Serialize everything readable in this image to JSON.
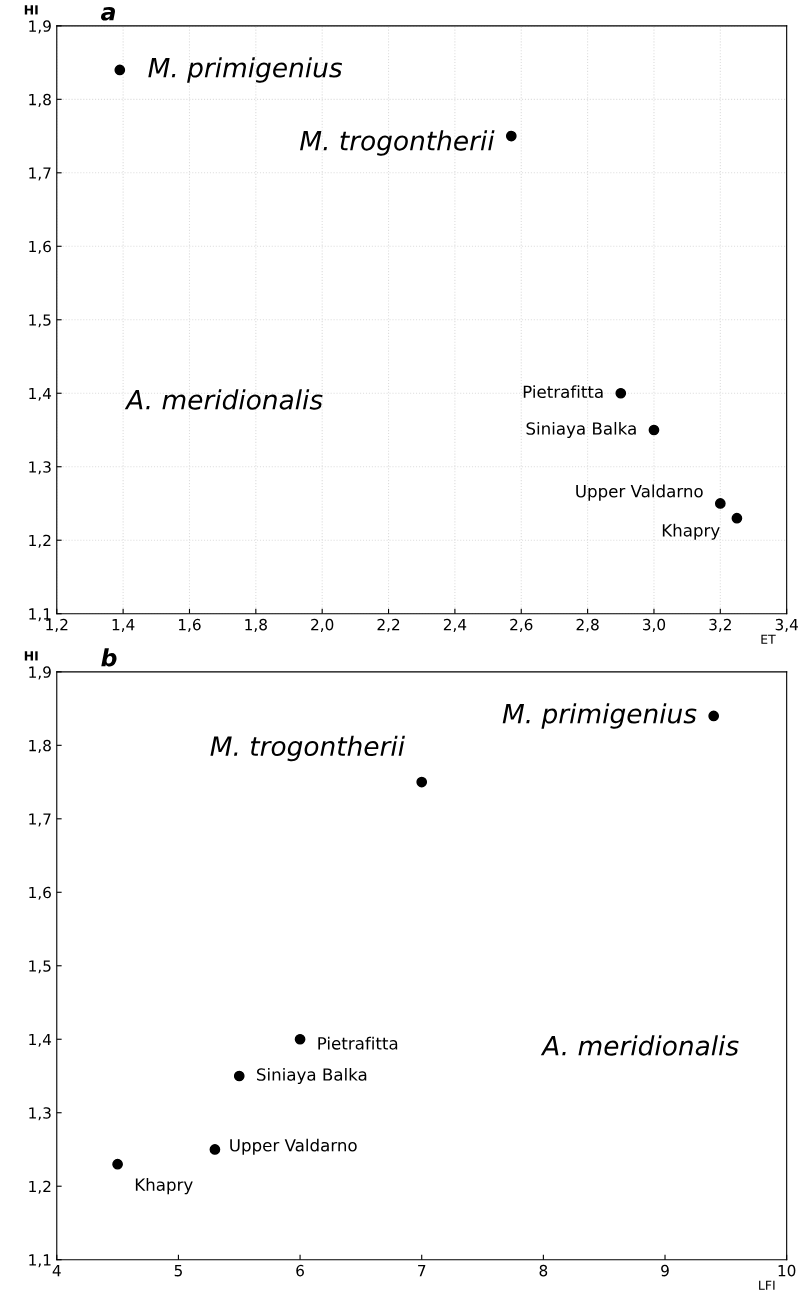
{
  "chart_data": [
    {
      "type": "scatter",
      "title": "a",
      "xlabel": "ET",
      "ylabel": "HI",
      "grid": true,
      "marker": "circle",
      "x": [
        1.39,
        2.57,
        2.9,
        3.0,
        3.2,
        3.25
      ],
      "series": [
        {
          "color": "#000000",
          "values": [
            1.84,
            1.75,
            1.4,
            1.35,
            1.25,
            1.23
          ]
        }
      ],
      "xlim": [
        1.2,
        3.4
      ],
      "xticks": [
        {
          "value": 1.2,
          "label": "1,2"
        },
        {
          "value": 1.4,
          "label": "1,4"
        },
        {
          "value": 1.6,
          "label": "1,6"
        },
        {
          "value": 1.8,
          "label": "1,8"
        },
        {
          "value": 2.0,
          "label": "2,0"
        },
        {
          "value": 2.2,
          "label": "2,2"
        },
        {
          "value": 2.4,
          "label": "2,4"
        },
        {
          "value": 2.6,
          "label": "2,6"
        },
        {
          "value": 2.8,
          "label": "2,8"
        },
        {
          "value": 3.0,
          "label": "3,0"
        },
        {
          "value": 3.2,
          "label": "3,2"
        },
        {
          "value": 3.4,
          "label": "3,4"
        }
      ],
      "ylim": [
        1.1,
        1.9
      ],
      "yticks": [
        {
          "value": 1.1,
          "label": "1,1"
        },
        {
          "value": 1.2,
          "label": "1,2"
        },
        {
          "value": 1.3,
          "label": "1,3"
        },
        {
          "value": 1.4,
          "label": "1,4"
        },
        {
          "value": 1.5,
          "label": "1,5"
        },
        {
          "value": 1.6,
          "label": "1,6"
        },
        {
          "value": 1.7,
          "label": "1,7"
        },
        {
          "value": 1.8,
          "label": "1,8"
        },
        {
          "value": 1.9,
          "label": "1,9"
        }
      ],
      "annotations": [
        {
          "text": "M. primigenius",
          "x": 1.39,
          "y": 1.84
        },
        {
          "text": "M. trogontherii",
          "x": 2.57,
          "y": 1.75
        },
        {
          "text": "Pietrafitta",
          "x": 2.9,
          "y": 1.4
        },
        {
          "text": "Siniaya Balka",
          "x": 3.0,
          "y": 1.35
        },
        {
          "text": "Upper Valdarno",
          "x": 3.2,
          "y": 1.25
        },
        {
          "text": "Khapry",
          "x": 3.25,
          "y": 1.23
        },
        "A. meridionalis"
      ]
    },
    {
      "type": "scatter",
      "title": "b",
      "xlabel": "LFI",
      "ylabel": "HI",
      "grid": false,
      "marker": "circle",
      "x": [
        9.4,
        7.0,
        6.0,
        5.5,
        5.3,
        4.5
      ],
      "series": [
        {
          "color": "#000000",
          "values": [
            1.84,
            1.75,
            1.4,
            1.35,
            1.25,
            1.23
          ]
        }
      ],
      "xlim": [
        4,
        10
      ],
      "xticks": [
        4,
        5,
        6,
        7,
        8,
        9,
        10
      ],
      "ylim": [
        1.1,
        1.9
      ],
      "yticks": [
        {
          "value": 1.1,
          "label": "1,1"
        },
        {
          "value": 1.2,
          "label": "1,2"
        },
        {
          "value": 1.3,
          "label": "1,3"
        },
        {
          "value": 1.4,
          "label": "1,4"
        },
        {
          "value": 1.5,
          "label": "1,5"
        },
        {
          "value": 1.6,
          "label": "1,6"
        },
        {
          "value": 1.7,
          "label": "1,7"
        },
        {
          "value": 1.8,
          "label": "1,8"
        },
        {
          "value": 1.9,
          "label": "1,9"
        }
      ],
      "annotations": [
        {
          "text": "M. primigenius",
          "x": 9.4,
          "y": 1.84
        },
        {
          "text": "M. trogontherii",
          "x": 7.0,
          "y": 1.75
        },
        {
          "text": "Pietrafitta",
          "x": 6.0,
          "y": 1.4
        },
        {
          "text": "Siniaya Balka",
          "x": 5.5,
          "y": 1.35
        },
        {
          "text": "Upper Valdarno",
          "x": 5.3,
          "y": 1.25
        },
        {
          "text": "Khapry",
          "x": 4.5,
          "y": 1.23
        },
        "A. meridionalis"
      ]
    }
  ]
}
